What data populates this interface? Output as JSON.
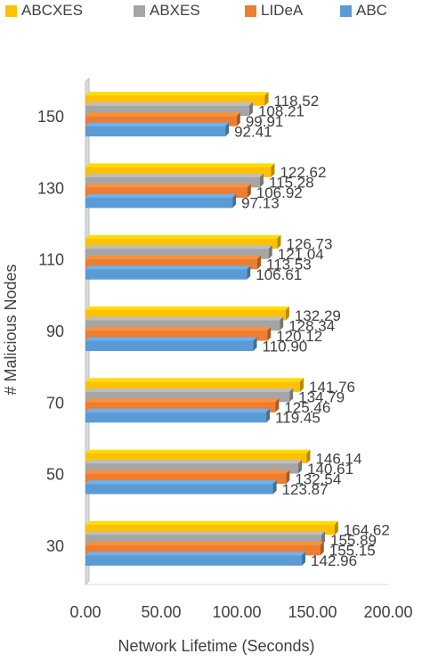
{
  "chart_data": {
    "type": "bar",
    "orientation": "horizontal",
    "style": "3d-clustered",
    "categories": [
      "30",
      "50",
      "70",
      "90",
      "110",
      "130",
      "150"
    ],
    "series": [
      {
        "name": "ABCXES",
        "color": "#FFC000",
        "values": [
          164.62,
          146.14,
          141.76,
          132.29,
          126.73,
          122.62,
          118.52
        ]
      },
      {
        "name": "ABXES",
        "color": "#A5A5A5",
        "values": [
          155.89,
          140.61,
          134.79,
          128.34,
          121.04,
          115.28,
          108.21
        ]
      },
      {
        "name": "LIDeA",
        "color": "#ED7D31",
        "values": [
          155.15,
          132.54,
          125.46,
          120.12,
          113.53,
          106.92,
          99.91
        ]
      },
      {
        "name": "ABC",
        "color": "#5B9BD5",
        "values": [
          142.96,
          123.87,
          119.45,
          110.9,
          106.61,
          97.13,
          92.41
        ]
      }
    ],
    "value_labels": {
      "ABCXES": [
        "164.62",
        "146.14",
        "141.76",
        "132.29",
        "126.73",
        "122.62",
        "118.52"
      ],
      "ABXES": [
        "155.89",
        "140.61",
        "134.79",
        "128.34",
        "121.04",
        "115.28",
        "108.21"
      ],
      "LIDeA": [
        "155.15",
        "132.54",
        "125.46",
        "120.12",
        "113.53",
        "106.92",
        "99.91"
      ],
      "ABC": [
        "142.96",
        "123.87",
        "119.45",
        "110.90",
        "106.61",
        "97.13",
        "92.41"
      ]
    },
    "xlabel": "Network Lifetime (Seconds)",
    "ylabel": "# Malicious Nodes",
    "xlim": [
      0,
      200
    ],
    "xticks": [
      "0.00",
      "50.00",
      "100.00",
      "150.00",
      "200.00"
    ],
    "legend_position": "top",
    "grid": false
  }
}
